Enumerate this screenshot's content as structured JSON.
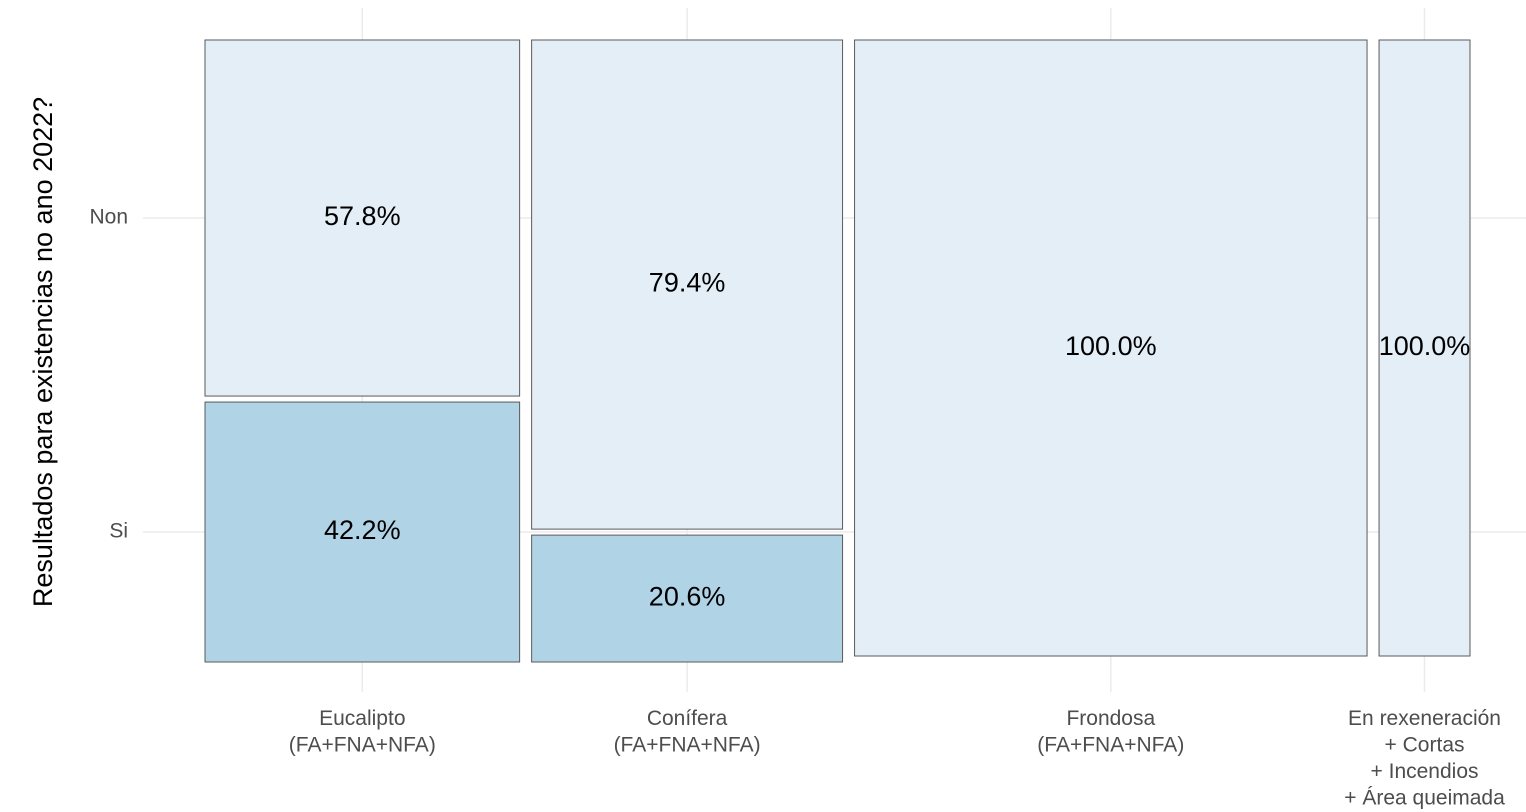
{
  "chart_data": {
    "type": "mosaic",
    "ylabel": "Resultados para existencias no ano 2022?",
    "categories": [
      "Eucalipto\n(FA+FNA+NFA)",
      "Conífera\n(FA+FNA+NFA)",
      "Frondosa\n(FA+FNA+NFA)",
      "En rexeneración\n+ Cortas\n+ Incendios\n+ Área queimada"
    ],
    "widths": [
      25.6,
      25.3,
      41.7,
      7.4
    ],
    "series": [
      {
        "name": "Si",
        "color": "#b0d3e6",
        "values": [
          42.2,
          20.6,
          0,
          0
        ],
        "value_labels": [
          "42.2%",
          "20.6%",
          null,
          null
        ]
      },
      {
        "name": "Non",
        "color": "#e3eef7",
        "values": [
          57.8,
          79.4,
          100,
          100
        ],
        "value_labels": [
          "57.8%",
          "79.4%",
          "100.0%",
          "100.0%"
        ]
      }
    ],
    "grid": true
  }
}
